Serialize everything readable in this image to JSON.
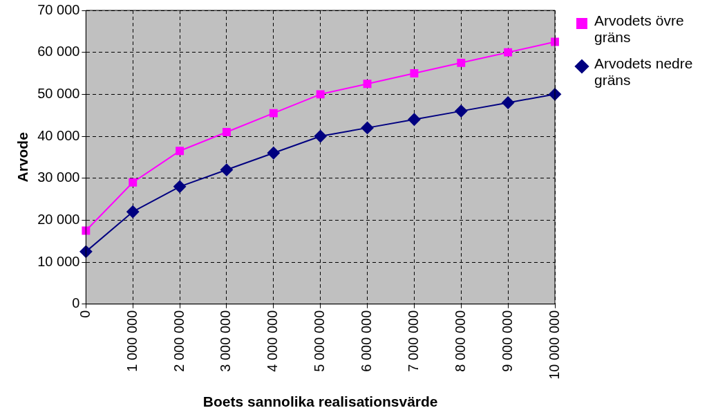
{
  "chart_data": {
    "type": "line",
    "xlabel": "Boets sannolika realisationsvärde",
    "ylabel": "Arvode",
    "x": [
      0,
      1000000,
      2000000,
      3000000,
      4000000,
      5000000,
      6000000,
      7000000,
      8000000,
      9000000,
      10000000
    ],
    "series": [
      {
        "name": "Arvodets övre gräns",
        "color": "#ff00ff",
        "marker": "square",
        "values": [
          17500,
          29000,
          36500,
          41000,
          45500,
          50000,
          52500,
          55000,
          57500,
          60000,
          62500
        ]
      },
      {
        "name": "Arvodets nedre gräns",
        "color": "#000080",
        "marker": "diamond",
        "values": [
          12500,
          22000,
          28000,
          32000,
          36000,
          40000,
          42000,
          44000,
          46000,
          48000,
          50000
        ]
      }
    ],
    "xlim": [
      0,
      10000000
    ],
    "xticks": [
      0,
      {
        "value": 1000000,
        "label": "1 000 000"
      },
      {
        "value": 2000000,
        "label": "2 000 000"
      },
      {
        "value": 3000000,
        "label": "3 000 000"
      },
      {
        "value": 4000000,
        "label": "4 000 000"
      },
      {
        "value": 5000000,
        "label": "5 000 000"
      },
      {
        "value": 6000000,
        "label": "6 000 000"
      },
      {
        "value": 7000000,
        "label": "7 000 000"
      },
      {
        "value": 8000000,
        "label": "8 000 000"
      },
      {
        "value": 9000000,
        "label": "9 000 000"
      },
      {
        "value": 10000000,
        "label": "10 000 000"
      }
    ],
    "ylim": [
      0,
      70000
    ],
    "yticks": [
      0,
      {
        "value": 10000,
        "label": "10 000"
      },
      {
        "value": 20000,
        "label": "20 000"
      },
      {
        "value": 30000,
        "label": "30 000"
      },
      {
        "value": 40000,
        "label": "40 000"
      },
      {
        "value": 50000,
        "label": "50 000"
      },
      {
        "value": 60000,
        "label": "60 000"
      },
      {
        "value": 70000,
        "label": "70 000"
      }
    ],
    "grid": true,
    "legend": "right",
    "line_style": "solid"
  }
}
